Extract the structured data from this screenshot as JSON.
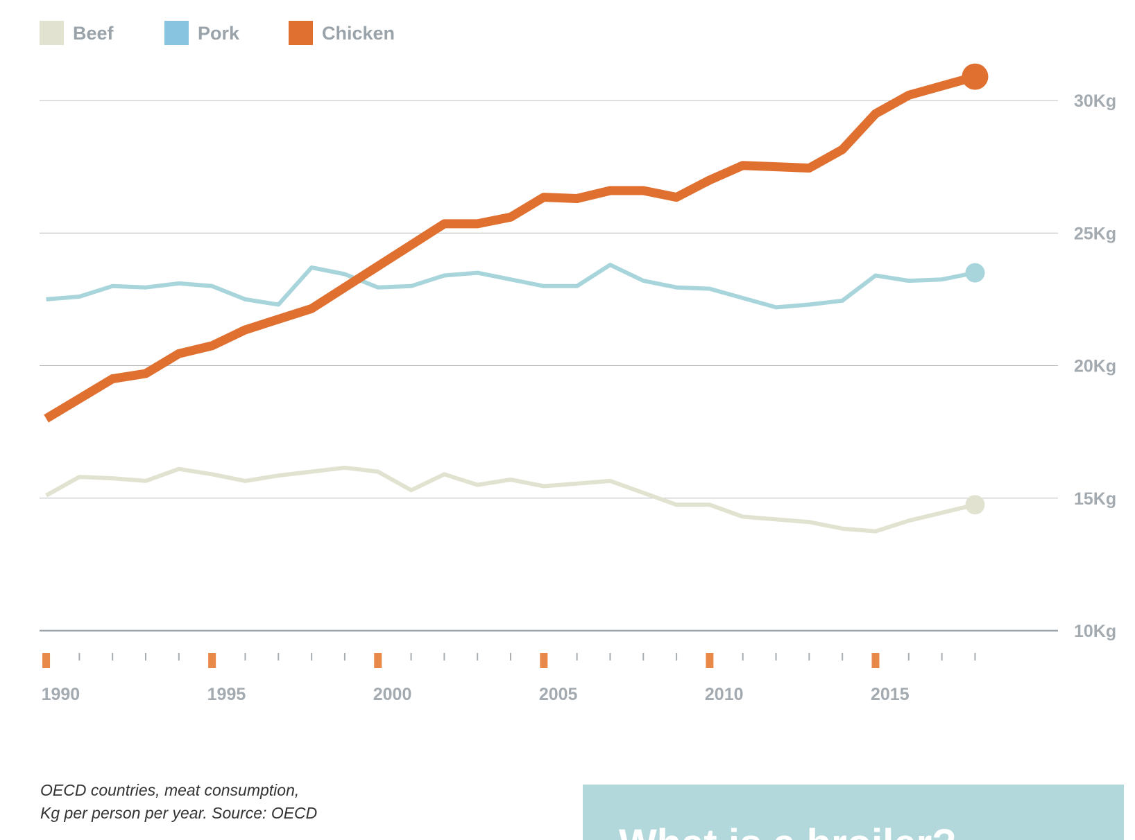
{
  "chart_data": {
    "type": "line",
    "title": "",
    "xlabel": "",
    "ylabel": "",
    "x": [
      1990,
      1991,
      1992,
      1993,
      1994,
      1995,
      1996,
      1997,
      1998,
      1999,
      2000,
      2001,
      2002,
      2003,
      2004,
      2005,
      2006,
      2007,
      2008,
      2009,
      2010,
      2011,
      2012,
      2013,
      2014,
      2015,
      2016,
      2017,
      2018
    ],
    "x_tick_labels": [
      "1990",
      "1995",
      "2000",
      "2005",
      "2010",
      "2015"
    ],
    "x_tick_values": [
      1990,
      1995,
      2000,
      2005,
      2010,
      2015
    ],
    "xlim": [
      1989.8,
      2020.5
    ],
    "y_tick_labels": [
      "10Kg",
      "15Kg",
      "20Kg",
      "25Kg",
      "30Kg"
    ],
    "y_tick_values": [
      10,
      15,
      20,
      25,
      30
    ],
    "ylim": [
      10,
      30
    ],
    "legend_position": "top-left",
    "series": [
      {
        "name": "Beef",
        "color": "#e1e3d0",
        "values": [
          15.1,
          15.8,
          15.75,
          15.65,
          16.1,
          15.9,
          15.65,
          15.85,
          16.0,
          16.15,
          16.0,
          15.3,
          15.9,
          15.5,
          15.7,
          15.45,
          15.55,
          15.65,
          15.2,
          14.75,
          14.75,
          14.3,
          14.2,
          14.1,
          13.85,
          13.75,
          14.15,
          14.45,
          14.75
        ]
      },
      {
        "name": "Pork",
        "color": "#a8d5db",
        "values": [
          22.5,
          22.6,
          23.0,
          22.95,
          23.1,
          23.0,
          22.5,
          22.3,
          23.7,
          23.45,
          22.95,
          23.0,
          23.4,
          23.5,
          23.25,
          23.0,
          23.0,
          23.8,
          23.2,
          22.95,
          22.9,
          22.55,
          22.2,
          22.3,
          22.45,
          23.4,
          23.2,
          23.25,
          23.5
        ]
      },
      {
        "name": "Chicken",
        "color": "#e07030",
        "values": [
          18.0,
          18.75,
          19.5,
          19.7,
          20.45,
          20.75,
          21.35,
          21.75,
          22.15,
          22.95,
          23.75,
          24.55,
          25.35,
          25.35,
          25.6,
          26.35,
          26.3,
          26.6,
          26.6,
          26.35,
          27.0,
          27.55,
          27.5,
          27.45,
          28.15,
          29.5,
          30.2,
          30.55,
          30.9
        ]
      }
    ]
  },
  "legend_swatch_colors": {
    "Beef": "#e1e3d0",
    "Pork": "#88c4e0",
    "Chicken": "#e07030"
  },
  "styles": {
    "grid_color": "#b8bcbf",
    "axis_color": "#9aa3a9",
    "tick_mark_color": "#a8adb2",
    "major_tick_color": "#e8894a",
    "info_box_color": "#b3d8db"
  },
  "footer": {
    "source_line1": "OECD countries, meat consumption,",
    "source_line2": "Kg per person per year. Source: OECD",
    "info_box_title": "What is a broiler?"
  }
}
